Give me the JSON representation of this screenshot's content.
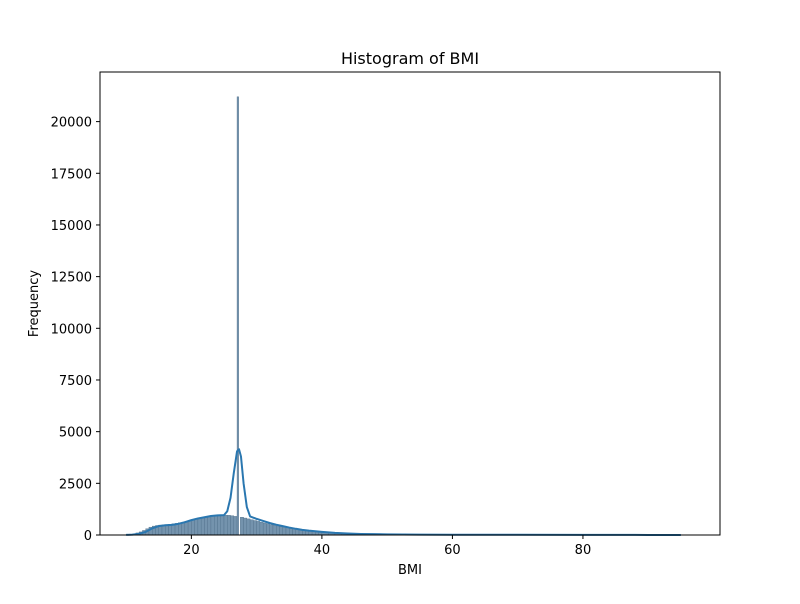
{
  "chart_data": {
    "type": "bar",
    "title": "Histogram of BMI",
    "xlabel": "BMI",
    "ylabel": "Frequency",
    "xlim": [
      6,
      101
    ],
    "ylim": [
      0,
      22400
    ],
    "xticks": [
      20,
      40,
      60,
      80
    ],
    "yticks": [
      0,
      2500,
      5000,
      7500,
      10000,
      12500,
      15000,
      17500,
      20000
    ],
    "grid": false,
    "legend": "none",
    "bin_width": 0.5,
    "bins": {
      "x_start": [
        10.0,
        10.5,
        11.0,
        11.5,
        12.0,
        12.5,
        13.0,
        13.5,
        14.0,
        14.5,
        15.0,
        15.5,
        16.0,
        16.5,
        17.0,
        17.5,
        18.0,
        18.5,
        19.0,
        19.5,
        20.0,
        20.5,
        21.0,
        21.5,
        22.0,
        22.5,
        23.0,
        23.5,
        24.0,
        24.5,
        25.0,
        25.5,
        26.0,
        26.5,
        27.0,
        27.5,
        28.0,
        28.5,
        29.0,
        29.5,
        30.0,
        30.5,
        31.0,
        31.5,
        32.0,
        32.5,
        33.0,
        33.5,
        34.0,
        34.5,
        35.0,
        35.5,
        36.0,
        36.5,
        37.0,
        37.5,
        38.0,
        38.5,
        39.0,
        39.5,
        40.0,
        41.0,
        42.0,
        43.0,
        44.0,
        45.0,
        46.0,
        48.0,
        50.0,
        55.0,
        60.0,
        70.0,
        80.0,
        90.0,
        95.0
      ],
      "counts": [
        20,
        30,
        60,
        100,
        150,
        220,
        300,
        380,
        430,
        460,
        480,
        490,
        500,
        520,
        540,
        560,
        590,
        620,
        660,
        700,
        740,
        780,
        820,
        850,
        880,
        900,
        920,
        940,
        950,
        960,
        960,
        950,
        930,
        900,
        21200,
        860,
        820,
        780,
        740,
        700,
        660,
        620,
        580,
        540,
        500,
        470,
        440,
        410,
        380,
        350,
        320,
        300,
        280,
        260,
        240,
        220,
        200,
        185,
        170,
        155,
        140,
        120,
        100,
        85,
        70,
        60,
        50,
        40,
        30,
        25,
        20,
        15,
        10,
        8,
        5
      ]
    },
    "series": [
      {
        "type": "line",
        "x": [
          10,
          11,
          12,
          13,
          14,
          15,
          16,
          17,
          18,
          19,
          20,
          21,
          22,
          23,
          24,
          25,
          25.5,
          26,
          26.5,
          27,
          27.3,
          27.6,
          28,
          28.5,
          29,
          30,
          31,
          32,
          33,
          34,
          35,
          36,
          37,
          38,
          39,
          40,
          42,
          44,
          46,
          48,
          50,
          55,
          60,
          70,
          80,
          90,
          95
        ],
        "values": [
          5,
          20,
          60,
          150,
          320,
          430,
          470,
          490,
          540,
          620,
          720,
          800,
          860,
          920,
          950,
          960,
          1150,
          1800,
          3000,
          4050,
          4150,
          3800,
          2500,
          1350,
          900,
          780,
          680,
          580,
          500,
          430,
          360,
          300,
          250,
          210,
          180,
          150,
          100,
          70,
          50,
          40,
          30,
          20,
          15,
          10,
          5,
          3,
          2
        ]
      }
    ]
  }
}
